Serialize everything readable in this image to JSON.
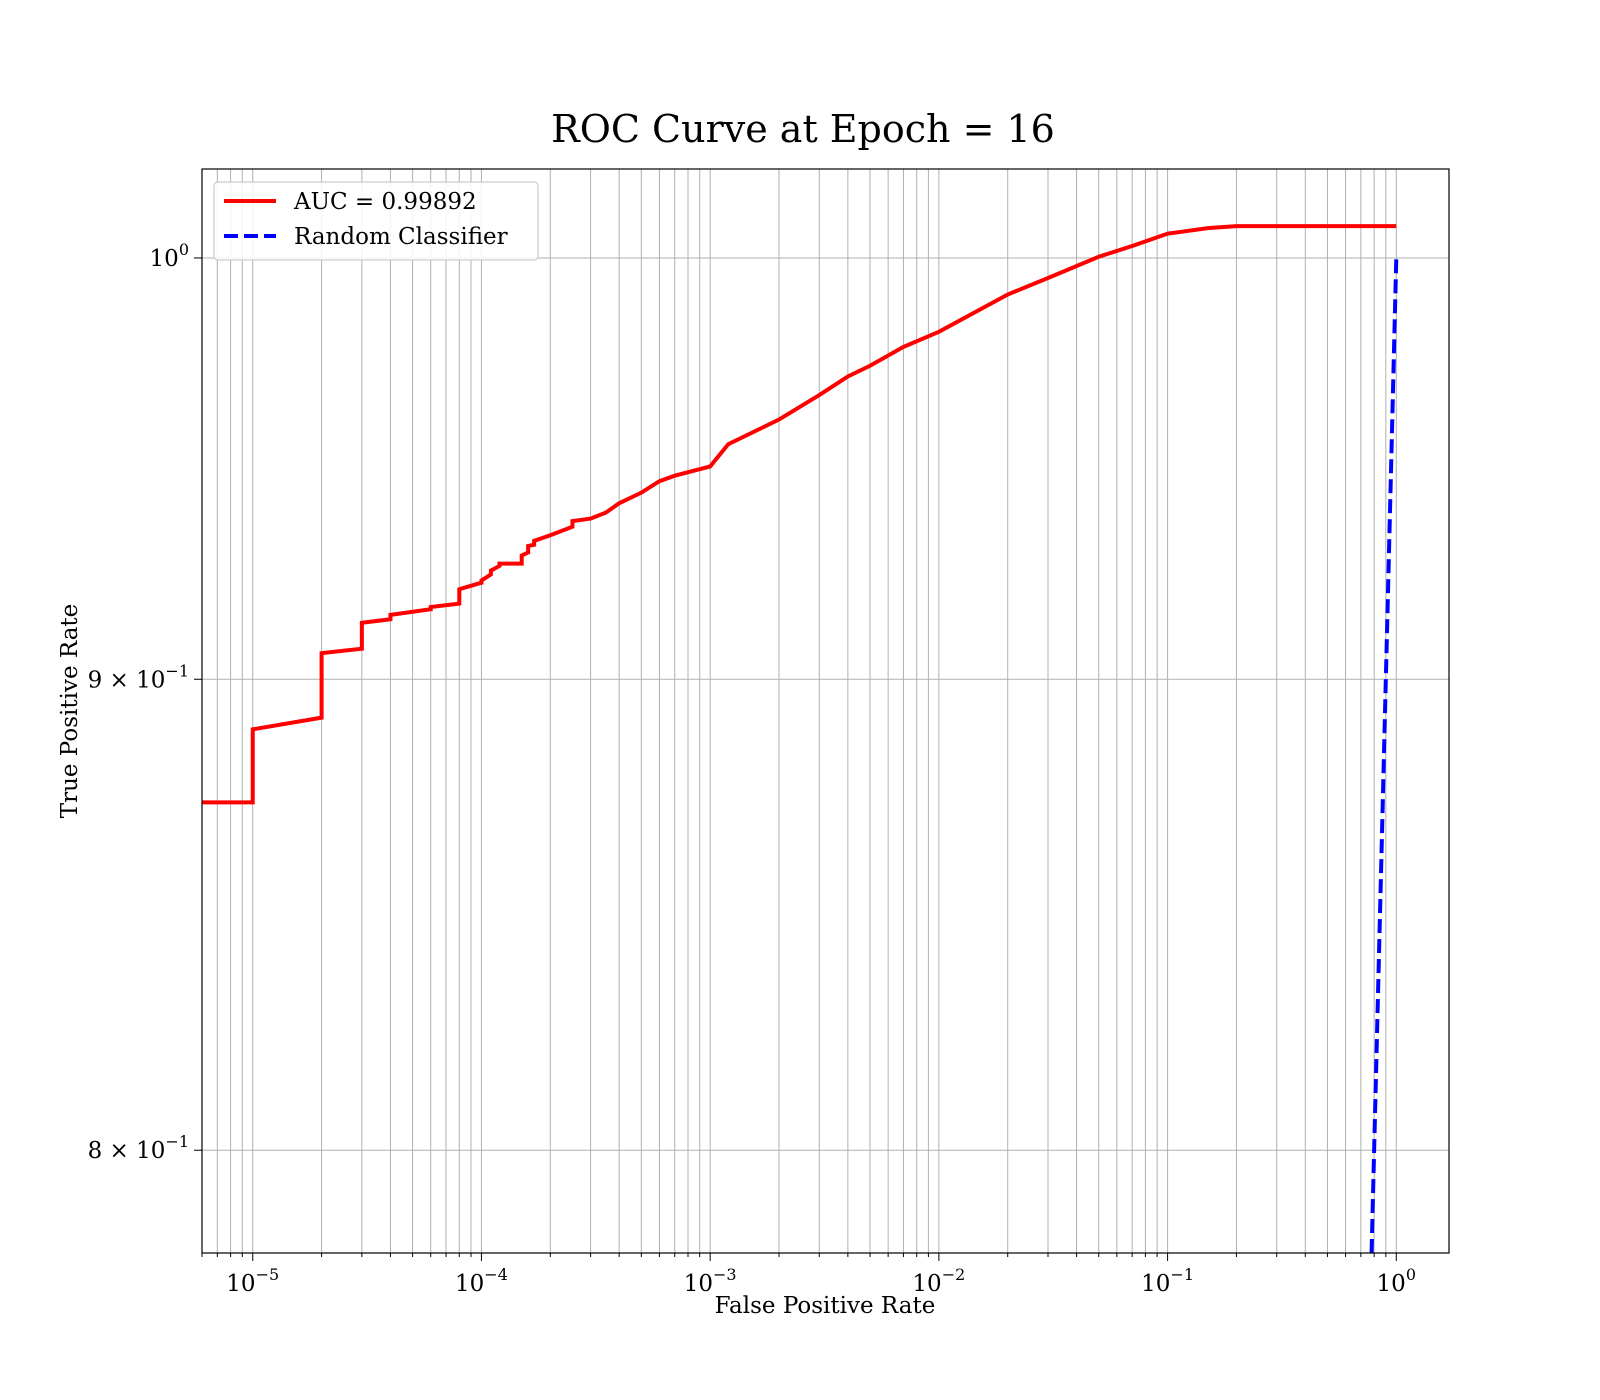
{
  "chart_data": {
    "type": "line",
    "title": "ROC Curve at Epoch = 16",
    "xlabel": "False Positive Rate",
    "ylabel": "True Positive Rate",
    "xscale": "log",
    "yscale": "log",
    "xlim": [
      6e-06,
      1.7
    ],
    "ylim": [
      0.7797,
      1.0225
    ],
    "grid": true,
    "grid_which": "both",
    "legend_position": "upper left",
    "x_ticks": [
      {
        "value": 1e-05,
        "base": "10",
        "exp": "−5"
      },
      {
        "value": 0.0001,
        "base": "10",
        "exp": "−4"
      },
      {
        "value": 0.001,
        "base": "10",
        "exp": "−3"
      },
      {
        "value": 0.01,
        "base": "10",
        "exp": "−2"
      },
      {
        "value": 0.1,
        "base": "10",
        "exp": "−1"
      },
      {
        "value": 1,
        "base": "10",
        "exp": "0"
      }
    ],
    "y_ticks": [
      {
        "value": 1.0,
        "mant": "",
        "base": "10",
        "exp": "0"
      },
      {
        "value": 0.9,
        "mant": "9 × ",
        "base": "10",
        "exp": "−1"
      },
      {
        "value": 0.8,
        "mant": "8 × ",
        "base": "10",
        "exp": "−1"
      }
    ],
    "series": [
      {
        "name": "AUC = 0.99892",
        "color": "#ff0000",
        "dash": "solid",
        "x": [
          6e-06,
          1e-05,
          1e-05,
          2e-05,
          2e-05,
          3e-05,
          3e-05,
          4e-05,
          4e-05,
          6e-05,
          6e-05,
          8e-05,
          8e-05,
          0.0001,
          0.0001,
          0.00011,
          0.00011,
          0.00012,
          0.00012,
          0.00015,
          0.00015,
          0.00016,
          0.00016,
          0.00017,
          0.00017,
          0.0002,
          0.00025,
          0.00025,
          0.0003,
          0.00035,
          0.0004,
          0.0005,
          0.0006,
          0.0007,
          0.001,
          0.0012,
          0.002,
          0.003,
          0.004,
          0.005,
          0.007,
          0.01,
          0.02,
          0.03,
          0.05,
          0.07,
          0.1,
          0.15,
          0.2,
          0.5,
          1.0
        ],
        "y": [
          0.8727,
          0.8727,
          0.8888,
          0.8914,
          0.9059,
          0.9069,
          0.9128,
          0.9136,
          0.9146,
          0.9159,
          0.9164,
          0.9172,
          0.9205,
          0.922,
          0.9225,
          0.9239,
          0.9248,
          0.9259,
          0.9264,
          0.9264,
          0.9283,
          0.929,
          0.9305,
          0.9308,
          0.9317,
          0.933,
          0.935,
          0.9363,
          0.9369,
          0.9383,
          0.9405,
          0.943,
          0.9457,
          0.947,
          0.9492,
          0.9545,
          0.9604,
          0.9663,
          0.9708,
          0.9734,
          0.978,
          0.9817,
          0.9909,
          0.995,
          1.0003,
          1.003,
          1.0061,
          1.0075,
          1.008,
          1.008,
          1.008
        ]
      },
      {
        "name": "Random Classifier",
        "color": "#0000ff",
        "dash": "dashed",
        "x": [
          0.7797,
          0.9,
          1.0
        ],
        "y": [
          0.7797,
          0.9,
          1.0
        ]
      }
    ]
  }
}
